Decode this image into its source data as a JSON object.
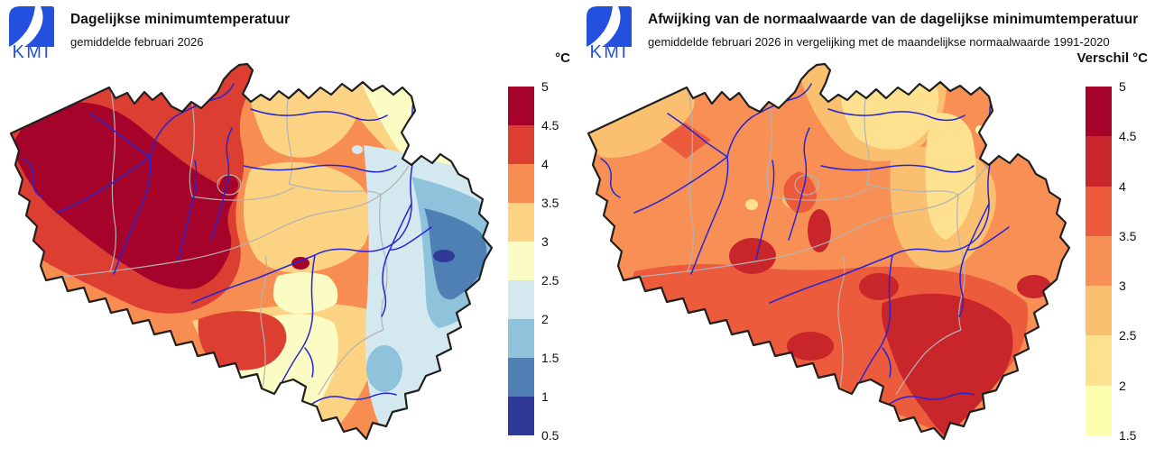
{
  "left_panel": {
    "logo_text": "KMI",
    "title": "Dagelijkse minimumtemperatuur",
    "subtitle": "gemiddelde februari 2026",
    "legend": {
      "title": "°C",
      "ticks": [
        "5",
        "4.5",
        "4",
        "3.5",
        "3",
        "2.5",
        "2",
        "1.5",
        "1",
        "0.5"
      ],
      "colors": [
        "#a50329",
        "#dc3e32",
        "#f88d52",
        "#fcd283",
        "#fbfbc4",
        "#d4e8ef",
        "#8fc3dc",
        "#4e80b6",
        "#2f3a97"
      ]
    }
  },
  "right_panel": {
    "logo_text": "KMI",
    "title": "Afwijking van de normaalwaarde van de dagelijkse minimumtemperatuur",
    "subtitle": "gemiddelde februari 2026 in vergelijking met de maandelijkse normaalwaarde 1991-2020",
    "legend": {
      "title": "Verschil °C",
      "ticks": [
        "5",
        "4.5",
        "4",
        "3.5",
        "3",
        "2.5",
        "2",
        "1.5"
      ],
      "colors": [
        "#a50329",
        "#c8262a",
        "#ec5b3c",
        "#f89055",
        "#fbbf70",
        "#fde18f",
        "#fdfdae"
      ]
    }
  },
  "map_style": {
    "border_color": "#1f1f1f",
    "province_color": "#b3b3b3",
    "river_color": "#2525d5",
    "logo_color": "#2350df",
    "background": "#ffffff"
  }
}
